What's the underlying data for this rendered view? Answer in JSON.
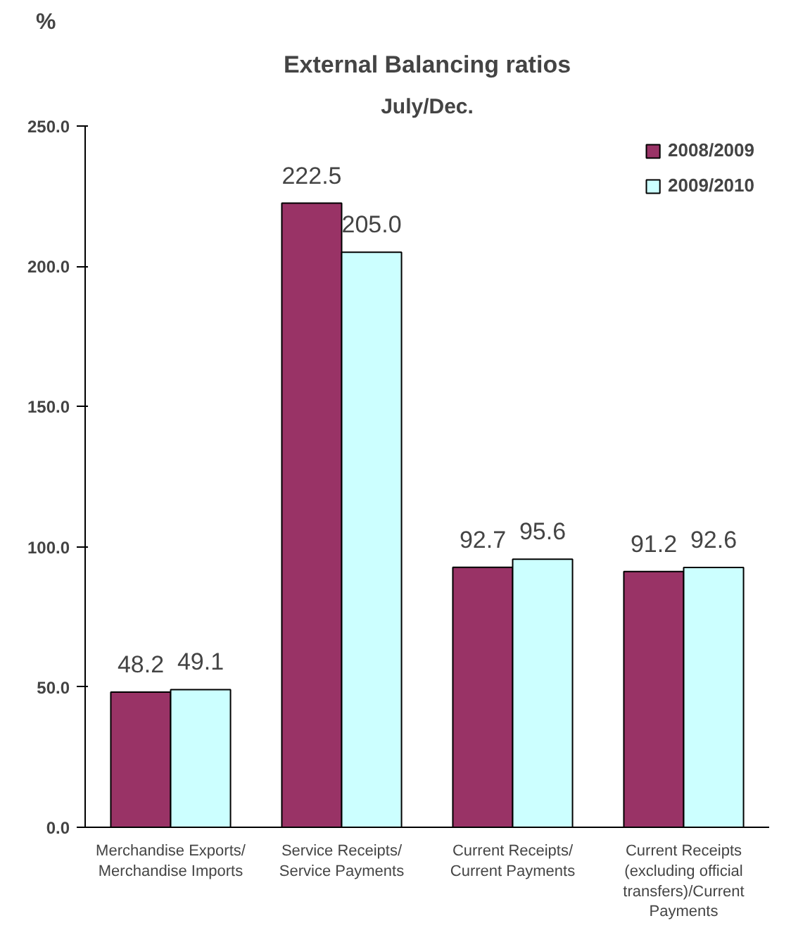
{
  "chart_data": {
    "type": "bar",
    "title": "External Balancing ratios",
    "subtitle": "July/Dec.",
    "ylabel": "%",
    "categories": [
      "Merchandise Exports/ Merchandise Imports",
      "Service Receipts/ Service Payments",
      "Current Receipts/ Current Payments",
      "Current Receipts (excluding official transfers)/Current Payments"
    ],
    "series": [
      {
        "name": "2008/2009",
        "color": "#993366",
        "values": [
          48.2,
          222.5,
          92.7,
          91.2
        ],
        "value_labels": [
          "48.2",
          "222.5",
          "92.7",
          "91.2"
        ]
      },
      {
        "name": "2009/2010",
        "color": "#ccffff",
        "values": [
          49.1,
          205.0,
          95.6,
          92.6
        ],
        "value_labels": [
          "49.1",
          "205.0",
          "95.6",
          "92.6"
        ]
      }
    ],
    "ylim": [
      0,
      250
    ],
    "yticks": [
      {
        "value": 0,
        "label": "0.0"
      },
      {
        "value": 50,
        "label": "50.0"
      },
      {
        "value": 100,
        "label": "100.0"
      },
      {
        "value": 150,
        "label": "150.0"
      },
      {
        "value": 200,
        "label": "200.0"
      },
      {
        "value": 250,
        "label": "250.0"
      }
    ],
    "data_labels": true,
    "grid": false,
    "legend": "top right"
  }
}
